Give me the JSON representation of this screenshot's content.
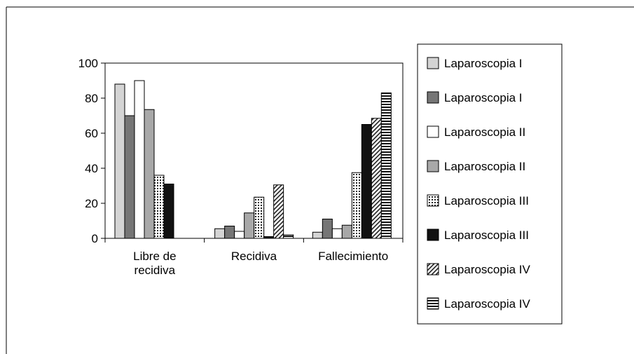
{
  "chart_data": {
    "type": "bar",
    "title": "",
    "xlabel": "",
    "ylabel": "",
    "ylim": [
      0,
      100
    ],
    "yticks": [
      0,
      20,
      40,
      60,
      80,
      100
    ],
    "grid": false,
    "legend_position": "right",
    "categories": [
      [
        "Libre de",
        "recidiva"
      ],
      [
        "Recidiva"
      ],
      [
        "Fallecimiento"
      ]
    ],
    "series": [
      {
        "name": "Laparoscopia I",
        "pattern": "light-gray",
        "values": [
          88,
          5.5,
          3.5
        ]
      },
      {
        "name": "Laparoscopia I",
        "pattern": "dark-gray",
        "values": [
          70,
          7,
          11
        ]
      },
      {
        "name": "Laparoscopia II",
        "pattern": "white",
        "values": [
          90,
          4,
          5.5
        ]
      },
      {
        "name": "Laparoscopia II",
        "pattern": "medium-gray",
        "values": [
          73.5,
          14.5,
          7.5
        ]
      },
      {
        "name": "Laparoscopia III",
        "pattern": "dotted",
        "values": [
          36,
          23.5,
          37.5
        ]
      },
      {
        "name": "Laparoscopia III",
        "pattern": "black",
        "values": [
          31,
          1,
          65
        ]
      },
      {
        "name": "Laparoscopia IV",
        "pattern": "diagonal",
        "values": [
          0,
          30.5,
          68.5
        ]
      },
      {
        "name": "Laparoscopia IV",
        "pattern": "horizontal",
        "values": [
          0,
          2,
          83
        ]
      }
    ],
    "colors": {
      "light-gray": "#d4d4d4",
      "dark-gray": "#767676",
      "white": "#ffffff",
      "medium-gray": "#a8a8a8",
      "black": "#111111",
      "border": "#000000"
    }
  }
}
